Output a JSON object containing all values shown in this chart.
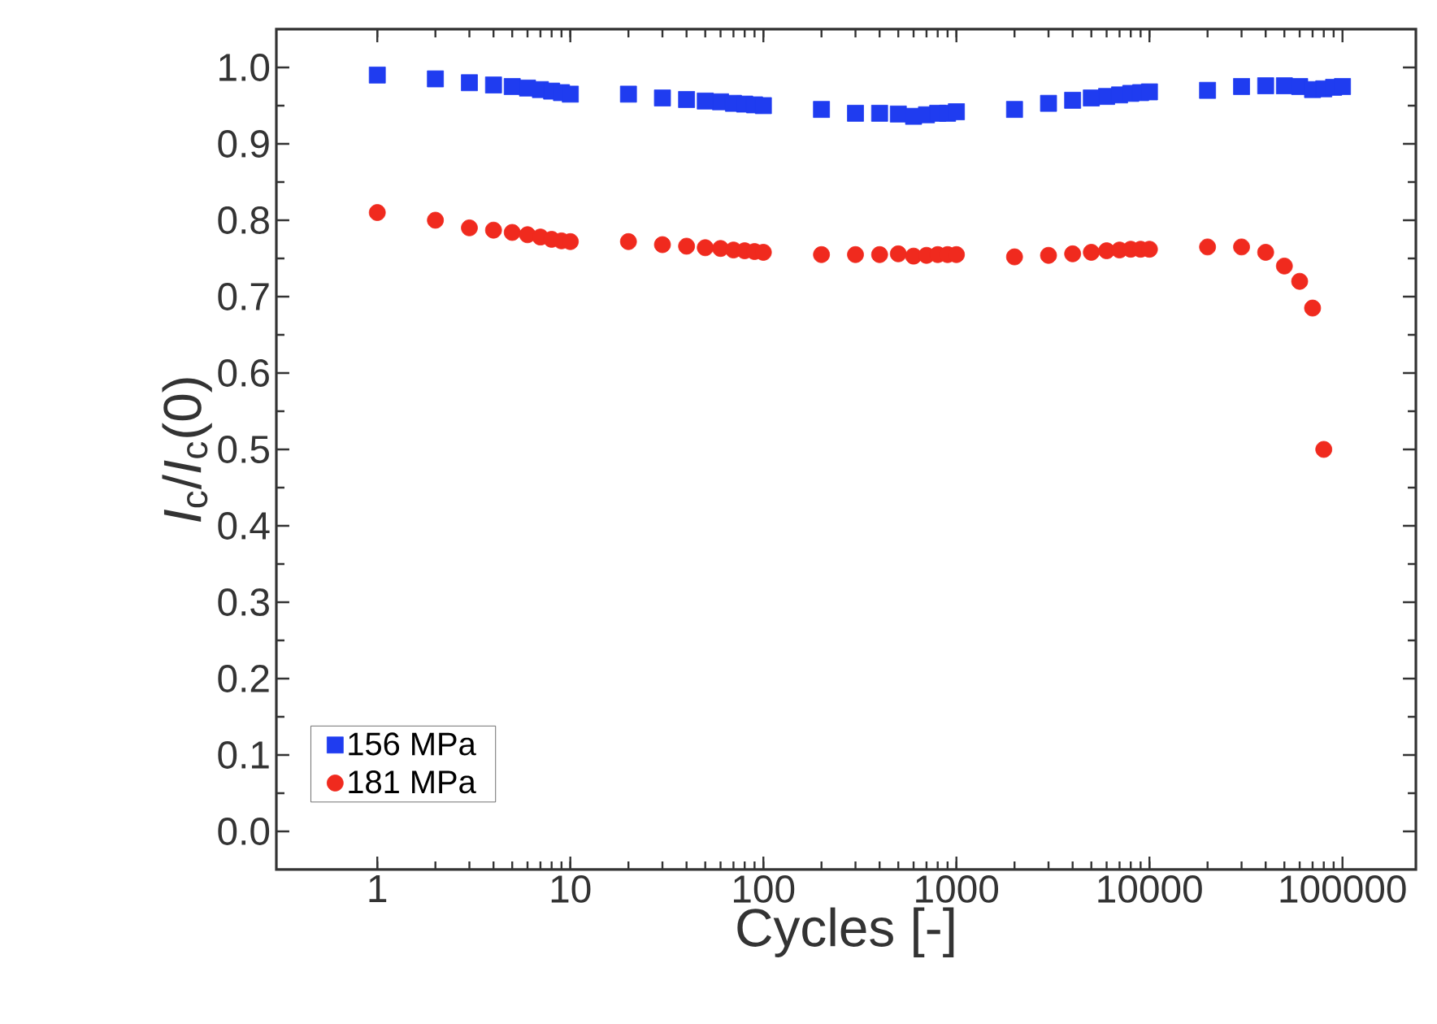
{
  "chart_data": {
    "type": "scatter",
    "xlabel": "Cycles [-]",
    "ylabel": "*I*$_{c}$/*I*$_{c}$(0)",
    "log": "x",
    "xlim": [
      0.3,
      240000
    ],
    "ylim": [
      -0.05,
      1.05
    ],
    "xticks": [
      1,
      10,
      100,
      1000,
      10000,
      100000
    ],
    "yticks": [
      {
        "value": 0,
        "label": "0.0"
      },
      {
        "value": 0.1,
        "label": "0.1"
      },
      {
        "value": 0.2,
        "label": "0.2"
      },
      {
        "value": 0.3,
        "label": "0.3"
      },
      {
        "value": 0.4,
        "label": "0.4"
      },
      {
        "value": 0.5,
        "label": "0.5"
      },
      {
        "value": 0.6,
        "label": "0.6"
      },
      {
        "value": 0.7,
        "label": "0.7"
      },
      {
        "value": 0.8,
        "label": "0.8"
      },
      {
        "value": 0.9,
        "label": "0.9"
      },
      {
        "value": 1,
        "label": "1.0"
      }
    ],
    "grid": false,
    "legend": "bottom left",
    "series": [
      {
        "name": "156 MPa",
        "color": "#1f3cf0",
        "marker": "square",
        "x": [
          1,
          2,
          3,
          4,
          5,
          6,
          7,
          8,
          9,
          10,
          20,
          30,
          40,
          50,
          60,
          70,
          80,
          90,
          100,
          200,
          300,
          400,
          500,
          600,
          700,
          800,
          900,
          1000,
          2000,
          3000,
          4000,
          5000,
          6000,
          7000,
          8000,
          9000,
          10000,
          20000,
          30000,
          40000,
          50000,
          60000,
          70000,
          80000,
          90000,
          100000
        ],
        "values": [
          0.99,
          0.985,
          0.98,
          0.977,
          0.975,
          0.973,
          0.971,
          0.969,
          0.967,
          0.965,
          0.965,
          0.96,
          0.958,
          0.956,
          0.955,
          0.953,
          0.952,
          0.951,
          0.95,
          0.945,
          0.94,
          0.94,
          0.939,
          0.936,
          0.938,
          0.94,
          0.94,
          0.942,
          0.945,
          0.953,
          0.957,
          0.96,
          0.962,
          0.964,
          0.966,
          0.967,
          0.968,
          0.97,
          0.975,
          0.976,
          0.976,
          0.975,
          0.971,
          0.972,
          0.974,
          0.975
        ]
      },
      {
        "name": "181 MPa",
        "color": "#f02a1e",
        "marker": "circle",
        "x": [
          1,
          2,
          3,
          4,
          5,
          6,
          7,
          8,
          9,
          10,
          20,
          30,
          40,
          50,
          60,
          70,
          80,
          90,
          100,
          200,
          300,
          400,
          500,
          600,
          700,
          800,
          900,
          1000,
          2000,
          3000,
          4000,
          5000,
          6000,
          7000,
          8000,
          9000,
          10000,
          20000,
          30000,
          40000,
          50000,
          60000,
          70000,
          80000
        ],
        "values": [
          0.81,
          0.8,
          0.79,
          0.787,
          0.784,
          0.781,
          0.778,
          0.775,
          0.773,
          0.772,
          0.772,
          0.768,
          0.766,
          0.764,
          0.763,
          0.761,
          0.76,
          0.759,
          0.758,
          0.755,
          0.755,
          0.755,
          0.756,
          0.753,
          0.754,
          0.755,
          0.755,
          0.755,
          0.752,
          0.754,
          0.756,
          0.758,
          0.76,
          0.761,
          0.762,
          0.762,
          0.762,
          0.765,
          0.765,
          0.758,
          0.74,
          0.72,
          0.685,
          0.5
        ]
      }
    ]
  }
}
